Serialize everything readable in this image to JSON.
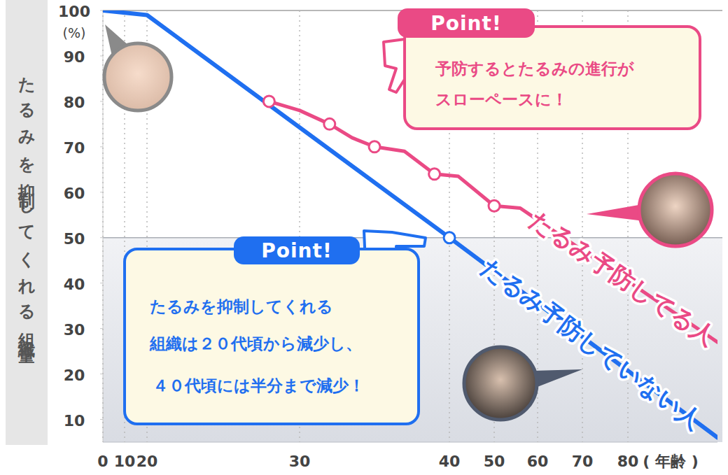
{
  "chart_data": {
    "type": "line",
    "ylabel": "たるみを抑制してくれる組織量",
    "xlabel": "( 年齢 )",
    "xlim": [
      0,
      100
    ],
    "xticks": [
      0,
      10,
      20,
      30,
      40,
      50,
      60,
      70,
      80
    ],
    "ylim": [
      5,
      100
    ],
    "yticks": [
      10,
      20,
      30,
      40,
      50,
      60,
      70,
      80,
      90,
      100
    ],
    "grid": true,
    "series": [
      {
        "name": "たるみ予防していない人",
        "color": "#1f6ff0",
        "type": "line",
        "x": [
          0,
          20,
          40,
          100
        ],
        "values": [
          100,
          99,
          50,
          6
        ]
      },
      {
        "name": "たるみ予防してる人",
        "color": "#ea4a85",
        "type": "line",
        "x": [
          28,
          30,
          32,
          33.5,
          35,
          37,
          39,
          42,
          50,
          56,
          100
        ],
        "values": [
          80,
          78,
          75,
          72,
          70,
          69,
          64,
          63.5,
          57,
          56.5,
          27
        ]
      },
      {
        "type": "scatter",
        "color": "#1f6ff0",
        "marker": "circle",
        "x": [
          40
        ],
        "values": [
          50
        ]
      },
      {
        "type": "scatter",
        "color": "#ea4a85",
        "marker": "circle",
        "x": [
          28,
          32,
          35,
          39,
          50
        ],
        "values": [
          80,
          75,
          70,
          64,
          57
        ]
      }
    ],
    "annotations": [
      {
        "text": "(%)"
      },
      {
        "label": "Point!",
        "text": [
          "予防するとたるみの進行が",
          "スローペースに！"
        ]
      },
      {
        "label": "Point!",
        "text": [
          "たるみを抑制してくれる",
          "組織は２０代頃から減少し、",
          "４０代頃には半分まで減少！"
        ]
      }
    ]
  }
}
